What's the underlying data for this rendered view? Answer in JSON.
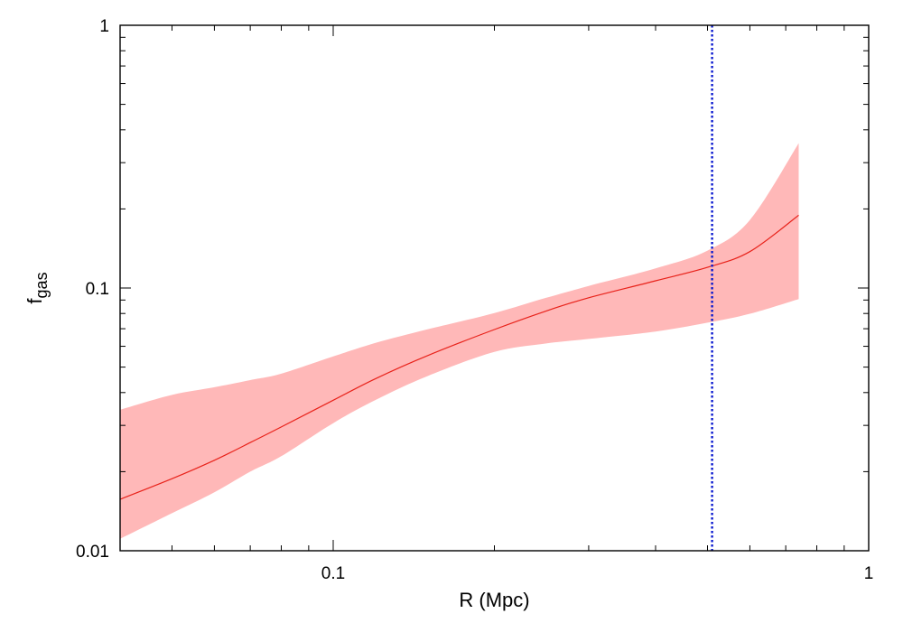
{
  "chart_data": {
    "type": "line",
    "title": "",
    "xlabel": "R (Mpc)",
    "ylabel": {
      "main": "f",
      "subscript": "gas"
    },
    "xscale": "log",
    "yscale": "log",
    "xlim": [
      0.04,
      1
    ],
    "ylim": [
      0.01,
      1
    ],
    "xticks": [
      {
        "value": 0.1,
        "label": "0.1"
      },
      {
        "value": 1,
        "label": "1"
      }
    ],
    "yticks": [
      {
        "value": 0.01,
        "label": "0.01"
      },
      {
        "value": 0.1,
        "label": "0.1"
      },
      {
        "value": 1,
        "label": "1"
      }
    ],
    "grid": false,
    "legend": "none",
    "series": [
      {
        "x": [
          0.04,
          0.05,
          0.06,
          0.07,
          0.08,
          0.1,
          0.12,
          0.15,
          0.2,
          0.25,
          0.3,
          0.4,
          0.5,
          0.6,
          0.74
        ],
        "y": [
          0.0157,
          0.0188,
          0.0221,
          0.0258,
          0.0296,
          0.0374,
          0.0452,
          0.0553,
          0.0695,
          0.0818,
          0.0918,
          0.1065,
          0.1199,
          0.1376,
          0.1892
        ],
        "color": "#e8221a",
        "band_lower": [
          0.0111,
          0.0139,
          0.0167,
          0.02,
          0.0229,
          0.0306,
          0.0375,
          0.0462,
          0.0571,
          0.0615,
          0.064,
          0.0683,
          0.0738,
          0.0798,
          0.0908
        ],
        "band_upper": [
          0.0344,
          0.0392,
          0.0419,
          0.0446,
          0.0472,
          0.0549,
          0.0618,
          0.0696,
          0.0803,
          0.0918,
          0.1018,
          0.1187,
          0.1388,
          0.1815,
          0.3558
        ],
        "band_color": "#ffb8b8"
      }
    ],
    "vline": {
      "x": 0.51,
      "color": "#0b1ad0",
      "style": "dotted"
    }
  }
}
